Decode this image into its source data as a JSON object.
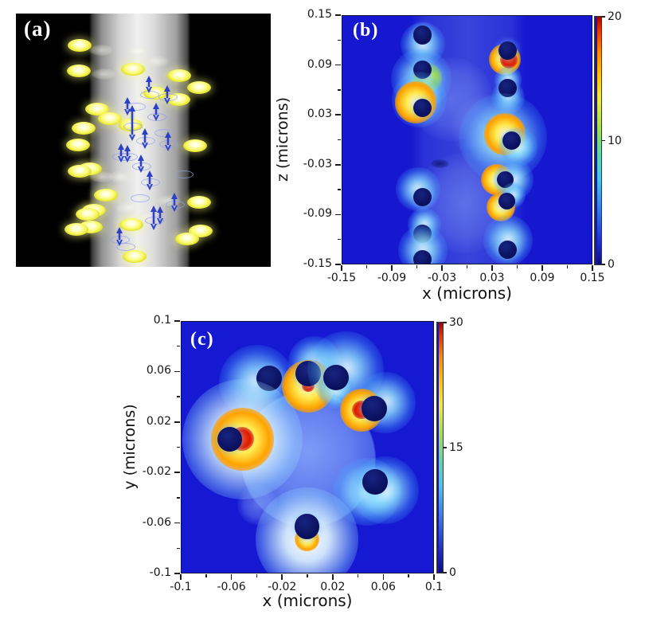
{
  "panels": {
    "a": {
      "label": "(a)",
      "disks_bright": [
        [
          80,
          40
        ],
        [
          79,
          72
        ],
        [
          147,
          70
        ],
        [
          205,
          78
        ],
        [
          230,
          93
        ],
        [
          175,
          100
        ],
        [
          204,
          108
        ],
        [
          102,
          120
        ],
        [
          118,
          132
        ],
        [
          144,
          140
        ],
        [
          85,
          144
        ],
        [
          78,
          165
        ],
        [
          225,
          166
        ],
        [
          93,
          195
        ],
        [
          80,
          198
        ],
        [
          113,
          228
        ],
        [
          230,
          237
        ],
        [
          98,
          247
        ],
        [
          90,
          252
        ],
        [
          94,
          268
        ],
        [
          76,
          271
        ],
        [
          145,
          265
        ],
        [
          232,
          273
        ],
        [
          215,
          283
        ],
        [
          149,
          305
        ]
      ],
      "disks_faint": [
        [
          107,
          46
        ],
        [
          152,
          47
        ],
        [
          177,
          60
        ],
        [
          110,
          76
        ],
        [
          160,
          107
        ],
        [
          108,
          205
        ],
        [
          131,
          205
        ],
        [
          141,
          244
        ],
        [
          192,
          235
        ],
        [
          166,
          256
        ]
      ],
      "arrows": [
        [
          167,
          78,
          100
        ],
        [
          190,
          90,
          114
        ],
        [
          140,
          105,
          128
        ],
        [
          146,
          115,
          160
        ],
        [
          176,
          112,
          135
        ],
        [
          162,
          144,
          170
        ],
        [
          132,
          163,
          187
        ],
        [
          157,
          177,
          200
        ],
        [
          191,
          148,
          173
        ],
        [
          140,
          165,
          187
        ],
        [
          168,
          197,
          222
        ],
        [
          199,
          225,
          249
        ],
        [
          173,
          241,
          272
        ],
        [
          181,
          242,
          265
        ],
        [
          130,
          268,
          292
        ]
      ],
      "rings": [
        [
          167,
          101
        ],
        [
          190,
          104
        ],
        [
          146,
          141
        ],
        [
          176,
          129
        ],
        [
          162,
          159
        ],
        [
          132,
          179
        ],
        [
          157,
          191
        ],
        [
          191,
          163
        ],
        [
          140,
          179
        ],
        [
          168,
          211
        ],
        [
          199,
          239
        ],
        [
          173,
          259
        ],
        [
          130,
          283
        ],
        [
          150,
          116
        ],
        [
          185,
          149
        ],
        [
          210,
          201
        ],
        [
          155,
          231
        ],
        [
          137,
          292
        ]
      ]
    },
    "b": {
      "label": "(b)"
    },
    "c": {
      "label": "(c)"
    }
  },
  "colors": {
    "field_bg_b": "#1518cf",
    "field_bg_c": "#151ad2",
    "nanoparticle": "#0c1363",
    "hot_red": "#dd1a00",
    "hot_yellow": "#ffe94e",
    "hot_cyan": "#7fe3ff",
    "fiber_light": "#6f8ff0",
    "gold_disk": "#f8f862",
    "arrow_blue": "#2d3fc4"
  },
  "chart_data": [
    {
      "id": "b",
      "type": "heatmap",
      "panel_label": "(b)",
      "xlabel": "x (microns)",
      "ylabel": "z (microns)",
      "xlim": [
        -0.15,
        0.15
      ],
      "ylim": [
        -0.15,
        0.15
      ],
      "xticks": [
        -0.15,
        -0.09,
        -0.03,
        0.03,
        0.09,
        0.15
      ],
      "xtick_labels": [
        "-0.15",
        "-0.09",
        "-0.03",
        "0.03",
        "0.09",
        "0.15"
      ],
      "yticks": [
        0.15,
        0.09,
        0.03,
        -0.03,
        -0.09,
        -0.15
      ],
      "ytick_labels": [
        "0.15",
        "0.09",
        "0.03",
        "-0.03",
        "-0.09",
        "-0.15"
      ],
      "colorbar": {
        "min": 0,
        "max": 20,
        "ticks": [
          0,
          10,
          20
        ],
        "tick_labels": [
          "0",
          "10",
          "20"
        ]
      },
      "colors": {
        "bg": "#1518cf"
      },
      "fiber": {
        "shape": "band",
        "x_edges": [
          -0.053,
          0.053
        ]
      },
      "bright_regions": [
        {
          "x": -0.02,
          "y": 0.05,
          "r": 0.05,
          "o": 0.4
        },
        {
          "x": -0.005,
          "y": -0.075,
          "r": 0.06,
          "o": 0.4
        },
        {
          "x": 0.02,
          "y": 0.015,
          "r": 0.04,
          "o": 0.3
        }
      ],
      "dark_patches": [
        {
          "x": 0.033,
          "y": 0.02,
          "rx": 0.013,
          "ry": 0.006
        },
        {
          "x": 0.038,
          "y": -0.038,
          "rx": 0.012,
          "ry": 0.005
        },
        {
          "x": -0.033,
          "y": -0.028,
          "rx": 0.011,
          "ry": 0.005
        }
      ],
      "particles": [
        {
          "x": -0.054,
          "z": 0.127,
          "r": 0.011,
          "hot": [
            {
              "a": 270,
              "c": "cyan",
              "s": 0.8
            }
          ]
        },
        {
          "x": -0.054,
          "z": 0.085,
          "r": 0.011,
          "hot": [
            {
              "a": 260,
              "c": "cyan",
              "s": 1.1
            },
            {
              "a": 300,
              "c": "green",
              "s": 0.9
            }
          ]
        },
        {
          "x": -0.054,
          "z": 0.039,
          "r": 0.011,
          "hot": [
            {
              "a": 110,
              "c": "cyan",
              "s": 1.0
            },
            {
              "a": 140,
              "c": "yellow",
              "s": 1.2
            }
          ]
        },
        {
          "x": -0.054,
          "z": -0.068,
          "r": 0.011,
          "hot": [
            {
              "a": 120,
              "c": "cyan",
              "s": 0.8
            }
          ]
        },
        {
          "x": -0.054,
          "z": -0.112,
          "r": 0.011,
          "hot": [
            {
              "a": 80,
              "c": "cyan",
              "s": 0.6
            }
          ]
        },
        {
          "x": -0.054,
          "z": -0.143,
          "r": 0.011,
          "hot": [
            {
              "a": 90,
              "c": "cyan",
              "s": 0.9
            }
          ]
        },
        {
          "x": 0.048,
          "z": 0.108,
          "r": 0.011,
          "hot": [
            {
              "a": 250,
              "c": "yellow",
              "s": 0.9
            },
            {
              "a": 275,
              "c": "red",
              "s": 0.9
            }
          ]
        },
        {
          "x": 0.048,
          "z": 0.063,
          "r": 0.011,
          "hot": [
            {
              "a": 90,
              "c": "cyan",
              "s": 0.5
            },
            {
              "a": 270,
              "c": "cyan",
              "s": 0.6
            }
          ]
        },
        {
          "x": 0.052,
          "z": 0.0,
          "r": 0.011,
          "hot": [
            {
              "a": 160,
              "c": "cyan",
              "s": 1.6
            },
            {
              "a": 135,
              "c": "yellow",
              "s": 1.2
            },
            {
              "a": 315,
              "c": "cyan",
              "s": 0.7
            }
          ]
        },
        {
          "x": 0.045,
          "z": -0.047,
          "r": 0.01,
          "hot": [
            {
              "a": 180,
              "c": "yellow",
              "s": 1.0
            },
            {
              "a": 0,
              "c": "cyan",
              "s": 0.8
            }
          ]
        },
        {
          "x": 0.047,
          "z": -0.073,
          "r": 0.01,
          "hot": [
            {
              "a": 225,
              "c": "yellow",
              "s": 0.9
            },
            {
              "a": 45,
              "c": "cyan",
              "s": 0.5
            }
          ]
        },
        {
          "x": 0.048,
          "z": -0.131,
          "r": 0.011,
          "hot": [
            {
              "a": 90,
              "c": "cyan",
              "s": 0.9
            }
          ]
        }
      ]
    },
    {
      "id": "c",
      "type": "heatmap",
      "panel_label": "(c)",
      "xlabel": "x (microns)",
      "ylabel": "y (microns)",
      "xlim": [
        -0.1,
        0.1
      ],
      "ylim": [
        -0.1,
        0.1
      ],
      "xticks": [
        -0.1,
        -0.06,
        -0.02,
        0.02,
        0.06,
        0.1
      ],
      "xtick_labels": [
        "-0.1",
        "-0.06",
        "-0.02",
        "0.02",
        "0.06",
        "0.1"
      ],
      "yticks": [
        0.1,
        0.06,
        0.02,
        -0.02,
        -0.06,
        -0.1
      ],
      "ytick_labels": [
        "0.1",
        "0.06",
        "0.02",
        "-0.02",
        "-0.06",
        "-0.1"
      ],
      "colorbar": {
        "min": 0,
        "max": 30,
        "ticks": [
          0,
          15,
          30
        ],
        "tick_labels": [
          "0",
          "15",
          "30"
        ]
      },
      "colors": {
        "bg": "#151ad2"
      },
      "fiber": {
        "shape": "circle",
        "x": 0.0,
        "y": -0.009,
        "r": 0.053
      },
      "bright_regions": [
        {
          "x": -0.04,
          "y": -0.045,
          "r": 0.016,
          "o": 0.55
        }
      ],
      "dark_patches": [],
      "particles": [
        {
          "x": -0.031,
          "y": 0.055,
          "r": 0.01,
          "hot": [
            {
              "a": 200,
              "c": "cyan",
              "s": 1.0
            }
          ]
        },
        {
          "x": 0.0,
          "y": 0.059,
          "r": 0.01,
          "hot": [
            {
              "a": 60,
              "c": "cyan",
              "s": 0.7
            },
            {
              "a": 270,
              "c": "yellow",
              "s": 1.1
            },
            {
              "a": 270,
              "c": "red",
              "s": 0.45
            }
          ]
        },
        {
          "x": 0.022,
          "y": 0.056,
          "r": 0.01,
          "hot": [
            {
              "a": 40,
              "c": "cyan",
              "s": 1.0
            },
            {
              "a": 270,
              "c": "cyan",
              "s": 0.5
            }
          ]
        },
        {
          "x": 0.052,
          "y": 0.031,
          "r": 0.01,
          "hot": [
            {
              "a": 30,
              "c": "cyan",
              "s": 0.8
            },
            {
              "a": 185,
              "c": "yellow",
              "s": 0.9
            },
            {
              "a": 185,
              "c": "red",
              "s": 0.7
            }
          ]
        },
        {
          "x": -0.062,
          "y": 0.007,
          "r": 0.01,
          "hot": [
            {
              "a": 0,
              "c": "white",
              "s": 1.4
            },
            {
              "a": 0,
              "c": "yellow",
              "s": 1.3
            },
            {
              "a": 0,
              "c": "red",
              "s": 0.9
            }
          ]
        },
        {
          "x": 0.053,
          "y": -0.027,
          "r": 0.01,
          "hot": [
            {
              "a": 230,
              "c": "cyan",
              "s": 0.9
            },
            {
              "a": 320,
              "c": "cyan",
              "s": 0.9
            }
          ]
        },
        {
          "x": -0.001,
          "y": -0.062,
          "r": 0.01,
          "hot": [
            {
              "a": 270,
              "c": "white",
              "s": 1.2
            },
            {
              "a": 270,
              "c": "yellow",
              "s": 0.5
            }
          ]
        }
      ]
    }
  ]
}
